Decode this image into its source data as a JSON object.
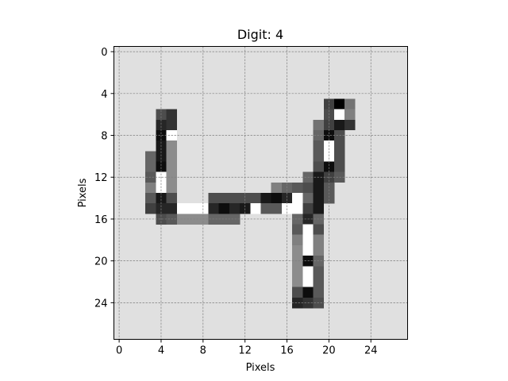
{
  "chart_data": {
    "type": "heatmap",
    "title": "Digit: 4",
    "xlabel": "Pixels",
    "ylabel": "Pixels",
    "xlim": [
      -0.5,
      27.5
    ],
    "ylim": [
      27.5,
      -0.5
    ],
    "xticks": [
      0,
      4,
      8,
      12,
      16,
      20,
      24
    ],
    "yticks": [
      0,
      4,
      8,
      12,
      16,
      20,
      24
    ],
    "grid": true,
    "colormap": "gray (dark = high value, light = low value)",
    "background_value": 0.12,
    "legend": "none",
    "pixels": [
      [
        20,
        5,
        0.75
      ],
      [
        21,
        5,
        1.0
      ],
      [
        22,
        5,
        0.55
      ],
      [
        4,
        6,
        0.7
      ],
      [
        5,
        6,
        0.8
      ],
      [
        20,
        6,
        0.7
      ],
      [
        21,
        6,
        0.0
      ],
      [
        22,
        6,
        0.5
      ],
      [
        4,
        7,
        0.85
      ],
      [
        5,
        7,
        0.8
      ],
      [
        19,
        7,
        0.55
      ],
      [
        20,
        7,
        0.75
      ],
      [
        21,
        7,
        0.9
      ],
      [
        22,
        7,
        0.8
      ],
      [
        4,
        8,
        0.95
      ],
      [
        5,
        8,
        0.0
      ],
      [
        19,
        8,
        0.6
      ],
      [
        20,
        8,
        0.95
      ],
      [
        21,
        8,
        0.7
      ],
      [
        4,
        9,
        0.9
      ],
      [
        5,
        9,
        0.45
      ],
      [
        19,
        9,
        0.65
      ],
      [
        20,
        9,
        0.0
      ],
      [
        21,
        9,
        0.7
      ],
      [
        3,
        10,
        0.6
      ],
      [
        4,
        10,
        0.9
      ],
      [
        5,
        10,
        0.45
      ],
      [
        19,
        10,
        0.65
      ],
      [
        20,
        10,
        0.0
      ],
      [
        21,
        10,
        0.7
      ],
      [
        3,
        11,
        0.6
      ],
      [
        4,
        11,
        0.95
      ],
      [
        5,
        11,
        0.45
      ],
      [
        19,
        11,
        0.7
      ],
      [
        20,
        11,
        0.95
      ],
      [
        21,
        11,
        0.7
      ],
      [
        3,
        12,
        0.65
      ],
      [
        4,
        12,
        0.0
      ],
      [
        5,
        12,
        0.45
      ],
      [
        18,
        12,
        0.6
      ],
      [
        19,
        12,
        0.9
      ],
      [
        20,
        12,
        0.75
      ],
      [
        21,
        12,
        0.65
      ],
      [
        3,
        13,
        0.5
      ],
      [
        4,
        13,
        0.0
      ],
      [
        5,
        13,
        0.45
      ],
      [
        15,
        13,
        0.5
      ],
      [
        16,
        13,
        0.6
      ],
      [
        17,
        13,
        0.65
      ],
      [
        18,
        13,
        0.7
      ],
      [
        19,
        13,
        0.9
      ],
      [
        20,
        13,
        0.65
      ],
      [
        3,
        14,
        0.65
      ],
      [
        4,
        14,
        0.9
      ],
      [
        5,
        14,
        0.7
      ],
      [
        9,
        14,
        0.7
      ],
      [
        10,
        14,
        0.7
      ],
      [
        11,
        14,
        0.7
      ],
      [
        12,
        14,
        0.7
      ],
      [
        13,
        14,
        0.7
      ],
      [
        14,
        14,
        0.9
      ],
      [
        15,
        14,
        0.95
      ],
      [
        16,
        14,
        0.85
      ],
      [
        17,
        14,
        0.0
      ],
      [
        18,
        14,
        0.6
      ],
      [
        19,
        14,
        0.9
      ],
      [
        20,
        14,
        0.65
      ],
      [
        3,
        15,
        0.75
      ],
      [
        4,
        15,
        0.85
      ],
      [
        5,
        15,
        0.85
      ],
      [
        6,
        15,
        0.0
      ],
      [
        7,
        15,
        0.0
      ],
      [
        8,
        15,
        0.0
      ],
      [
        9,
        15,
        0.85
      ],
      [
        10,
        15,
        0.95
      ],
      [
        11,
        15,
        0.85
      ],
      [
        12,
        15,
        0.9
      ],
      [
        13,
        15,
        0.0
      ],
      [
        14,
        15,
        0.65
      ],
      [
        15,
        15,
        0.65
      ],
      [
        16,
        15,
        0.0
      ],
      [
        17,
        15,
        0.0
      ],
      [
        18,
        15,
        0.75
      ],
      [
        19,
        15,
        0.9
      ],
      [
        4,
        16,
        0.7
      ],
      [
        5,
        16,
        0.65
      ],
      [
        6,
        16,
        0.45
      ],
      [
        7,
        16,
        0.45
      ],
      [
        8,
        16,
        0.45
      ],
      [
        9,
        16,
        0.6
      ],
      [
        10,
        16,
        0.6
      ],
      [
        11,
        16,
        0.6
      ],
      [
        17,
        16,
        0.6
      ],
      [
        18,
        16,
        0.85
      ],
      [
        19,
        16,
        0.6
      ],
      [
        17,
        17,
        0.65
      ],
      [
        18,
        17,
        0.0
      ],
      [
        19,
        17,
        0.7
      ],
      [
        17,
        18,
        0.5
      ],
      [
        18,
        18,
        0.0
      ],
      [
        19,
        18,
        0.5
      ],
      [
        17,
        19,
        0.45
      ],
      [
        18,
        19,
        0.0
      ],
      [
        19,
        19,
        0.5
      ],
      [
        17,
        20,
        0.45
      ],
      [
        18,
        20,
        0.95
      ],
      [
        19,
        20,
        0.6
      ],
      [
        17,
        21,
        0.45
      ],
      [
        18,
        21,
        0.0
      ],
      [
        19,
        21,
        0.65
      ],
      [
        17,
        22,
        0.45
      ],
      [
        18,
        22,
        0.0
      ],
      [
        19,
        22,
        0.65
      ],
      [
        17,
        23,
        0.7
      ],
      [
        18,
        23,
        0.95
      ],
      [
        19,
        23,
        0.65
      ],
      [
        17,
        24,
        0.85
      ],
      [
        18,
        24,
        0.8
      ],
      [
        19,
        24,
        0.7
      ]
    ]
  }
}
